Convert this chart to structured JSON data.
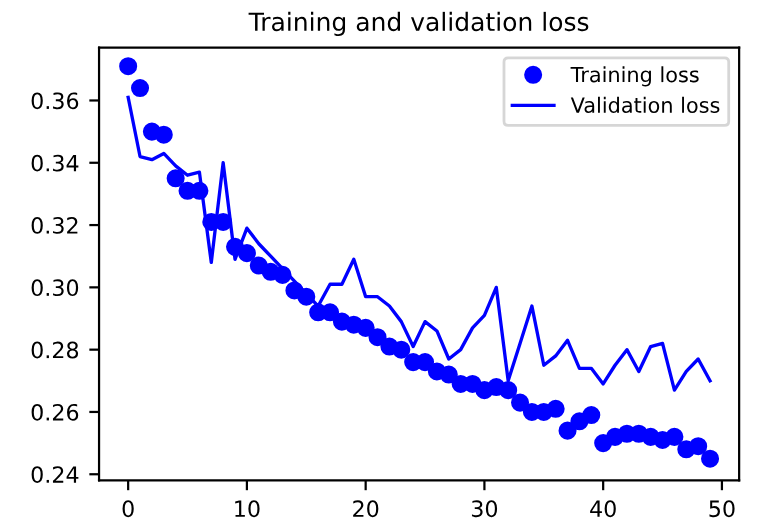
{
  "chart_data": {
    "type": "line",
    "title": "Training and validation loss",
    "x": [
      0,
      1,
      2,
      3,
      4,
      5,
      6,
      7,
      8,
      9,
      10,
      11,
      12,
      13,
      14,
      15,
      16,
      17,
      18,
      19,
      20,
      21,
      22,
      23,
      24,
      25,
      26,
      27,
      28,
      29,
      30,
      31,
      32,
      33,
      34,
      35,
      36,
      37,
      38,
      39,
      40,
      41,
      42,
      43,
      44,
      45,
      46,
      47,
      48,
      49
    ],
    "series": [
      {
        "name": "Training loss",
        "type": "scatter",
        "marker": "circle",
        "color": "#0000ff",
        "values": [
          0.371,
          0.364,
          0.35,
          0.349,
          0.335,
          0.331,
          0.331,
          0.321,
          0.321,
          0.313,
          0.311,
          0.307,
          0.305,
          0.304,
          0.299,
          0.297,
          0.292,
          0.292,
          0.289,
          0.288,
          0.287,
          0.284,
          0.281,
          0.28,
          0.276,
          0.276,
          0.273,
          0.272,
          0.269,
          0.269,
          0.267,
          0.268,
          0.267,
          0.263,
          0.26,
          0.26,
          0.261,
          0.254,
          0.257,
          0.259,
          0.25,
          0.252,
          0.253,
          0.253,
          0.252,
          0.251,
          0.252,
          0.248,
          0.249,
          0.245
        ]
      },
      {
        "name": "Validation loss",
        "color": "#0000ff",
        "values": [
          0.361,
          0.342,
          0.341,
          0.343,
          0.339,
          0.336,
          0.337,
          0.308,
          0.34,
          0.309,
          0.319,
          0.314,
          0.31,
          0.306,
          0.302,
          0.298,
          0.294,
          0.301,
          0.301,
          0.309,
          0.297,
          0.297,
          0.294,
          0.289,
          0.281,
          0.289,
          0.286,
          0.277,
          0.28,
          0.287,
          0.291,
          0.3,
          0.27,
          0.282,
          0.294,
          0.275,
          0.278,
          0.283,
          0.274,
          0.274,
          0.269,
          0.275,
          0.28,
          0.273,
          0.281,
          0.282,
          0.267,
          0.273,
          0.277,
          0.27
        ]
      }
    ],
    "xlim": [
      -2.45,
      51.45
    ],
    "xticks": [
      0,
      10,
      20,
      30,
      40,
      50
    ],
    "ylim": [
      0.238,
      0.377
    ],
    "yticks": [
      {
        "value": 0.24,
        "label": "0.24"
      },
      {
        "value": 0.26,
        "label": "0.26"
      },
      {
        "value": 0.28,
        "label": "0.28"
      },
      {
        "value": 0.3,
        "label": "0.30"
      },
      {
        "value": 0.32,
        "label": "0.32"
      },
      {
        "value": 0.34,
        "label": "0.34"
      },
      {
        "value": 0.36,
        "label": "0.36"
      }
    ],
    "legend": "top right",
    "grid": false
  }
}
